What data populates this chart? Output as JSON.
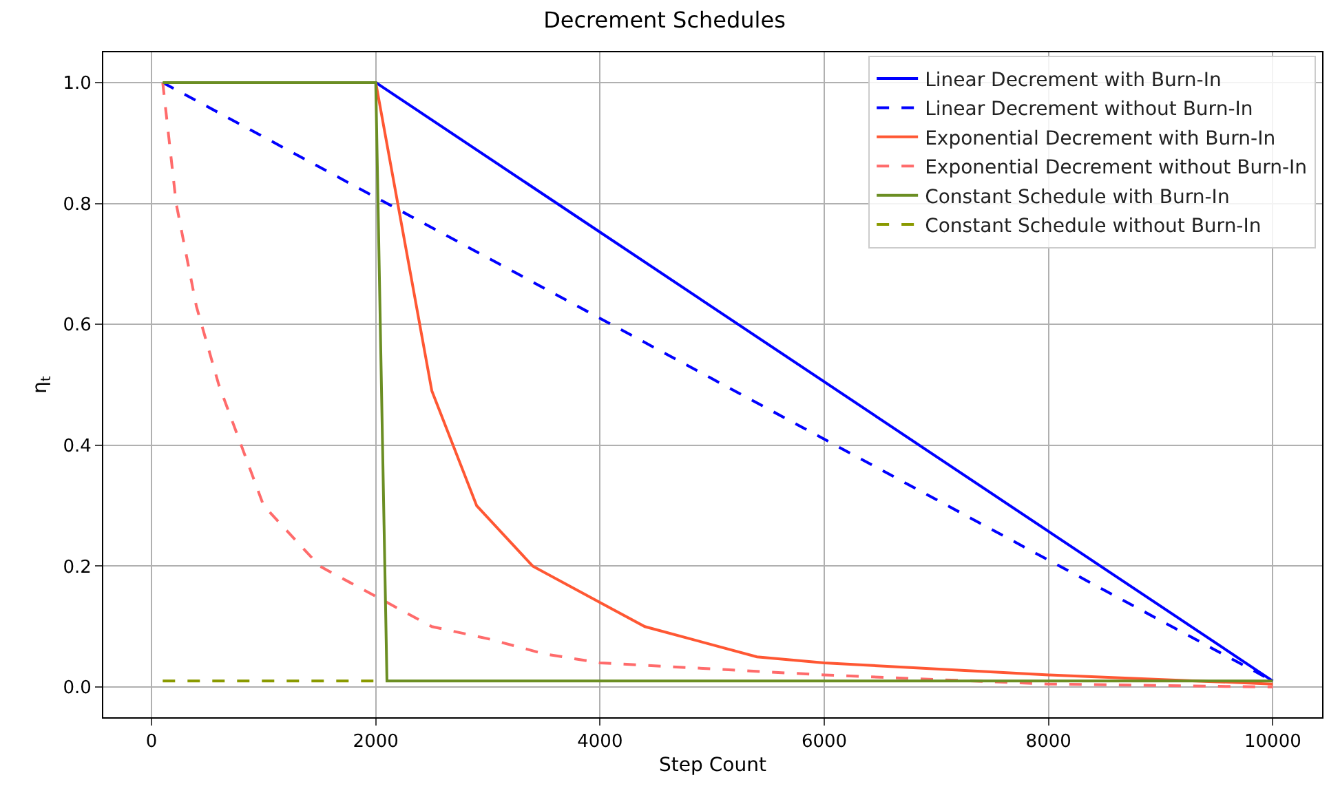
{
  "chart_data": {
    "type": "line",
    "title": "Decrement Schedules",
    "xlabel": "Step Count",
    "ylabel": "η$_{t}$",
    "xlim": [
      -430,
      10440
    ],
    "ylim": [
      -0.05,
      1.05
    ],
    "xticks": [
      0,
      2000,
      4000,
      6000,
      8000,
      10000
    ],
    "yticks": [
      {
        "value": 0,
        "label": "0.0"
      },
      0.2,
      0.4,
      0.6,
      0.8,
      {
        "value": 1,
        "label": "1.0"
      }
    ],
    "grid": true,
    "legend": "top right",
    "marker": "none",
    "series": [
      {
        "name": "Linear Decrement with Burn-In",
        "color": "#0000ff",
        "line_style": "solid",
        "x": [
          2000,
          10000
        ],
        "values": [
          1.0,
          0.01
        ]
      },
      {
        "name": "Linear Decrement without Burn-In",
        "color": "#0000ff",
        "line_style": "dashed",
        "x": [
          100,
          10000
        ],
        "values": [
          1.0,
          0.01
        ]
      },
      {
        "name": "Exponential Decrement with Burn-In",
        "color": "#ff5733",
        "line_style": "solid",
        "x": [
          2000,
          2500,
          2900,
          3400,
          4000,
          4400,
          5400,
          6000,
          8000,
          10000
        ],
        "values": [
          1.0,
          0.49,
          0.3,
          0.2,
          0.14,
          0.1,
          0.05,
          0.04,
          0.02,
          0.005
        ]
      },
      {
        "name": "Exponential Decrement without Burn-In",
        "color": "#ff6b6b",
        "line_style": "dashed",
        "x": [
          100,
          220,
          400,
          600,
          1000,
          1500,
          2000,
          2500,
          3000,
          3500,
          4000,
          6000,
          8000,
          10000
        ],
        "values": [
          1.0,
          0.8,
          0.63,
          0.5,
          0.3,
          0.2,
          0.15,
          0.1,
          0.08,
          0.055,
          0.04,
          0.02,
          0.005,
          0.0
        ]
      },
      {
        "name": "Constant Schedule with Burn-In",
        "color": "#6b8e23",
        "line_style": "solid",
        "x": [
          100,
          2000,
          2100,
          10000
        ],
        "values": [
          1.0,
          1.0,
          0.01,
          0.01
        ]
      },
      {
        "name": "Constant Schedule without Burn-In",
        "color": "#8a9a00",
        "line_style": "dashed",
        "x": [
          100,
          2000
        ],
        "values": [
          0.01,
          0.01
        ]
      }
    ]
  }
}
